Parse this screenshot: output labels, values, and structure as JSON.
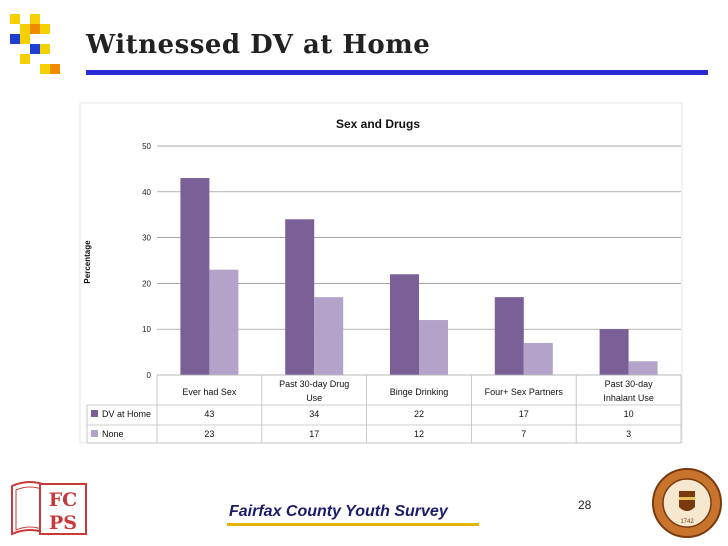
{
  "slide": {
    "title": "Witnessed DV at Home",
    "footer": "Fairfax County Youth Survey",
    "page_number": "28",
    "logo_text_top": "FC",
    "logo_text_bottom": "PS",
    "seal_center_text": "1742"
  },
  "colors": {
    "dv": "#7b6097",
    "none": "#b3a3c9",
    "accent_blue": "#2b2bd6",
    "accent_yellow": "#e0b600",
    "deco_blue": "#1f3fd0",
    "deco_yellow": "#f5d000",
    "deco_orange": "#f08a00"
  },
  "chart_data": {
    "type": "bar",
    "title": "Sex and Drugs",
    "ylabel": "Percentage",
    "xlabel": "",
    "ylim": [
      0,
      50
    ],
    "yticks": [
      "0",
      "10",
      "20",
      "30",
      "40",
      "50"
    ],
    "categories": [
      [
        "Ever had Sex"
      ],
      [
        "Past 30-day Drug",
        "Use"
      ],
      [
        "Binge Drinking"
      ],
      [
        "Four+ Sex Partners"
      ],
      [
        "Past 30-day",
        "Inhalant Use"
      ]
    ],
    "series": [
      {
        "name": "DV at Home",
        "values": [
          43,
          34,
          22,
          17,
          10
        ]
      },
      {
        "name": "None",
        "values": [
          23,
          17,
          12,
          7,
          3
        ]
      }
    ],
    "table_values": [
      [
        "43",
        "34",
        "22",
        "17",
        "10"
      ],
      [
        "23",
        "17",
        "12",
        "7",
        "3"
      ]
    ],
    "legend": "data-table"
  }
}
